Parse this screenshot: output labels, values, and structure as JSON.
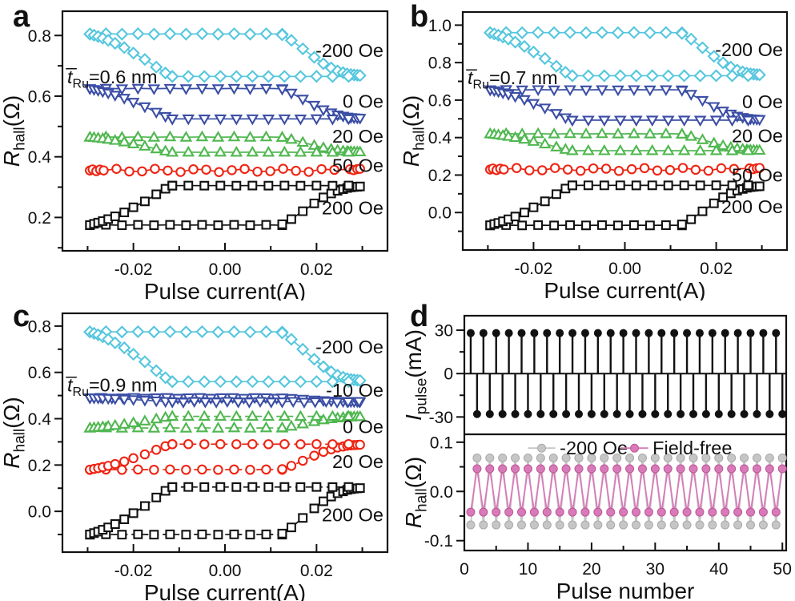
{
  "chart_data": [
    {
      "id": "a",
      "letter": "a",
      "type": "line",
      "xlabel": "Pulse current(A)",
      "ylabel_parts": [
        {
          "t": "R",
          "i": true
        },
        {
          "t": "hall",
          "sub": true
        },
        {
          "t": "(Ω)"
        }
      ],
      "annotation": {
        "parts": [
          {
            "t": "t̅",
            "i": true
          },
          {
            "t": "Ru",
            "sub": true
          },
          {
            "t": "=0.6 nm"
          }
        ],
        "y": 0.664
      },
      "xlim": [
        -0.0355,
        0.0355
      ],
      "ylim": [
        0.09,
        0.88
      ],
      "x_data_range_A": [
        -0.0295,
        0.0295
      ],
      "xticks": {
        "values": [
          -0.02,
          0,
          0.02
        ],
        "labels": [
          "-0.02",
          "0.00",
          "0.02"
        ],
        "minor": [
          -0.03,
          -0.01,
          0.01,
          0.03
        ]
      },
      "yticks": {
        "values": [
          0.2,
          0.4,
          0.6,
          0.8
        ],
        "labels": [
          "0.2",
          "0.4",
          "0.6",
          "0.8"
        ],
        "minor": [
          0.1,
          0.3,
          0.5,
          0.7
        ]
      },
      "series": [
        {
          "label": "-200 Oe",
          "marker": "diamond",
          "color": "#55c6de",
          "mode": "descend",
          "y_high": 0.805,
          "y_low": 0.665,
          "switch_onset_A": 0.012,
          "dashed": false,
          "label_y": 0.75
        },
        {
          "label": "0 Oe",
          "marker": "tri-down",
          "color": "#3b4ea5",
          "mode": "descend",
          "y_high": 0.625,
          "y_low": 0.525,
          "switch_onset_A": 0.012,
          "dashed": false,
          "label_y": 0.583
        },
        {
          "label": "20 Oe",
          "marker": "tri-up",
          "color": "#50b750",
          "mode": "descend",
          "y_high": 0.465,
          "y_low": 0.415,
          "switch_onset_A": 0.012,
          "dashed": false,
          "label_y": 0.468
        },
        {
          "label": "50 Oe",
          "marker": "circle",
          "color": "#ee2413",
          "mode": "flat",
          "y": 0.355,
          "wiggle": 0.0055,
          "dashed": false,
          "label_y": 0.372
        },
        {
          "label": "200 Oe",
          "marker": "square",
          "color": "#111111",
          "mode": "ascend",
          "y_high": 0.305,
          "y_low": 0.175,
          "switch_onset_A": 0.012,
          "dashed": false,
          "label_y": 0.232
        }
      ]
    },
    {
      "id": "b",
      "letter": "b",
      "type": "line",
      "xlabel": "Pulse current(A)",
      "ylabel_parts": [
        {
          "t": "R",
          "i": true
        },
        {
          "t": "hall",
          "sub": true
        },
        {
          "t": "(Ω)"
        }
      ],
      "annotation": {
        "parts": [
          {
            "t": "t̅",
            "i": true
          },
          {
            "t": "Ru",
            "sub": true
          },
          {
            "t": "=0.7 nm"
          }
        ],
        "y": 0.72
      },
      "xlim": [
        -0.0355,
        0.0355
      ],
      "ylim": [
        -0.2,
        1.07
      ],
      "x_data_range_A": [
        -0.0295,
        0.0295
      ],
      "xticks": {
        "values": [
          -0.02,
          0,
          0.02
        ],
        "labels": [
          "-0.02",
          "0.00",
          "0.02"
        ],
        "minor": [
          -0.03,
          -0.01,
          0.01,
          0.03
        ]
      },
      "yticks": {
        "values": [
          0,
          0.2,
          0.4,
          0.6,
          0.8,
          1.0
        ],
        "labels": [
          "0.0",
          "0.2",
          "0.4",
          "0.6",
          "0.8",
          "1.0"
        ],
        "minor": [
          -0.1,
          0.1,
          0.3,
          0.5,
          0.7,
          0.9
        ]
      },
      "series": [
        {
          "label": "-200 Oe",
          "marker": "diamond",
          "color": "#55c6de",
          "mode": "descend",
          "y_high": 0.96,
          "y_low": 0.73,
          "switch_onset_A": 0.012,
          "dashed": false,
          "label_y": 0.87
        },
        {
          "label": "0 Oe",
          "marker": "tri-down",
          "color": "#3b4ea5",
          "mode": "descend",
          "y_high": 0.655,
          "y_low": 0.493,
          "switch_onset_A": 0.012,
          "dashed": false,
          "label_y": 0.592
        },
        {
          "label": "20 Oe",
          "marker": "tri-up",
          "color": "#50b750",
          "mode": "descend",
          "y_high": 0.42,
          "y_low": 0.33,
          "switch_onset_A": 0.012,
          "dashed": false,
          "label_y": 0.41
        },
        {
          "label": "50 Oe",
          "marker": "circle",
          "color": "#ee2413",
          "mode": "flat",
          "y": 0.23,
          "wiggle": 0.008,
          "dashed": false,
          "label_y": 0.2
        },
        {
          "label": "200 Oe",
          "marker": "square",
          "color": "#111111",
          "mode": "ascend",
          "y_high": 0.145,
          "y_low": -0.068,
          "switch_onset_A": 0.012,
          "dashed": false,
          "label_y": 0.03
        }
      ]
    },
    {
      "id": "c",
      "letter": "c",
      "type": "line",
      "xlabel": "Pulse current(A)",
      "ylabel_parts": [
        {
          "t": "R",
          "i": true
        },
        {
          "t": "hall",
          "sub": true
        },
        {
          "t": "(Ω)"
        }
      ],
      "annotation": {
        "parts": [
          {
            "t": "t̅",
            "i": true
          },
          {
            "t": "Ru",
            "sub": true
          },
          {
            "t": "=0.9 nm"
          }
        ],
        "y": 0.545
      },
      "xlim": [
        -0.0355,
        0.0355
      ],
      "ylim": [
        -0.176,
        0.855
      ],
      "x_data_range_A": [
        -0.0295,
        0.0295
      ],
      "xticks": {
        "values": [
          -0.02,
          0,
          0.02
        ],
        "labels": [
          "-0.02",
          "0.00",
          "0.02"
        ],
        "minor": [
          -0.03,
          -0.01,
          0.01,
          0.03
        ]
      },
      "yticks": {
        "values": [
          0,
          0.2,
          0.4,
          0.6,
          0.8
        ],
        "labels": [
          "0.0",
          "0.2",
          "0.4",
          "0.6",
          "0.8"
        ],
        "minor": [
          -0.1,
          0.1,
          0.3,
          0.5,
          0.7
        ]
      },
      "series": [
        {
          "label": "-200 Oe",
          "marker": "diamond",
          "color": "#55c6de",
          "mode": "descend",
          "y_high": 0.775,
          "y_low": 0.56,
          "switch_onset_A": 0.012,
          "dashed": false,
          "label_y": 0.71
        },
        {
          "label": "-10 Oe",
          "marker": "tri-down",
          "color": "#3b4ea5",
          "mode": "descend",
          "y_high": 0.49,
          "y_low": 0.473,
          "switch_onset_A": 0.012,
          "dashed": false,
          "step": 0.0024,
          "label_y": 0.523
        },
        {
          "label": "0 Oe",
          "marker": "tri-up",
          "color": "#50b750",
          "mode": "ascend",
          "y_high": 0.41,
          "y_low": 0.36,
          "switch_onset_A": 0.012,
          "dashed": true,
          "label_y": 0.365
        },
        {
          "label": "20 Oe",
          "marker": "circle",
          "color": "#ee2413",
          "mode": "ascend",
          "y_high": 0.29,
          "y_low": 0.18,
          "switch_onset_A": 0.012,
          "dashed": true,
          "label_y": 0.215
        },
        {
          "label": "200 Oe",
          "marker": "square",
          "color": "#111111",
          "mode": "ascend",
          "y_high": 0.105,
          "y_low": -0.1,
          "switch_onset_A": 0.012,
          "dashed": true,
          "label_y": -0.015
        }
      ]
    },
    {
      "id": "d",
      "letter": "d",
      "type": "stem+line",
      "xlabel": "Pulse number",
      "xlim": [
        0,
        50.6
      ],
      "n_pulses": 50,
      "xticks": {
        "values": [
          0,
          10,
          20,
          30,
          40,
          50
        ],
        "labels": [
          "0",
          "10",
          "20",
          "30",
          "40",
          "50"
        ],
        "minor": [
          5,
          15,
          25,
          35,
          45
        ]
      },
      "top": {
        "ylabel_parts": [
          {
            "t": "I",
            "i": true
          },
          {
            "t": "pulse",
            "sub": true
          },
          {
            "t": "(mA)"
          }
        ],
        "ylim": [
          -42,
          40
        ],
        "yticks": {
          "values": [
            30,
            0,
            -30
          ],
          "labels": [
            "30",
            "0",
            "-30"
          ],
          "minor": [
            15,
            -15
          ]
        },
        "stem": {
          "n": 50,
          "high_mA": 28,
          "low_mA": -28,
          "first": "high",
          "color": "#111111"
        }
      },
      "bottom": {
        "ylabel_parts": [
          {
            "t": "R",
            "i": true
          },
          {
            "t": "hall",
            "sub": true
          },
          {
            "t": "(Ω)"
          }
        ],
        "ylim": [
          -0.12,
          0.116
        ],
        "yticks": {
          "values": [
            0.1,
            0,
            -0.1
          ],
          "labels": [
            "0.1",
            "0.0",
            "-0.1"
          ],
          "minor": [
            0.05,
            -0.05
          ]
        },
        "series": [
          {
            "label": "-200 Oe",
            "color": "#c6c6c6",
            "edge": "#a9a9a9",
            "high": 0.068,
            "low": -0.068,
            "first": "low"
          },
          {
            "label": "Field-free",
            "color": "#d87ab8",
            "edge": "#bd5598",
            "high": 0.046,
            "low": -0.042,
            "first": "low"
          }
        ],
        "legend": {
          "y": 0.088,
          "items_x": [
            [
              10.0,
              14.3,
              15.0
            ],
            [
              24.6,
              28.9,
              29.6
            ]
          ]
        }
      }
    }
  ]
}
